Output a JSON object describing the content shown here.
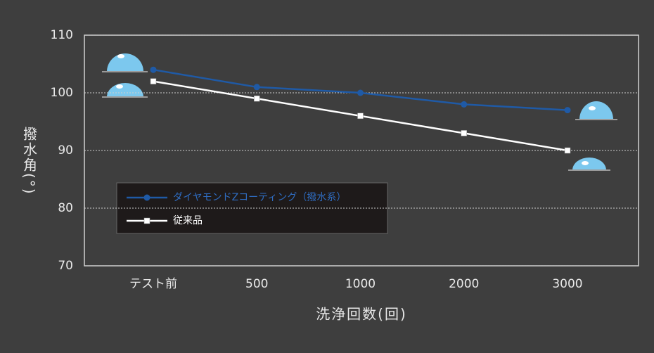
{
  "chart_data": {
    "type": "line",
    "x_label": "洗浄回数(回)",
    "y_label": "撥水角(°)",
    "categories": [
      "テスト前",
      "500",
      "1000",
      "2000",
      "3000"
    ],
    "series": [
      {
        "name": "ダイヤモンドZコーティング（撥水系）",
        "color": "#1f5aa6",
        "marker": "circle",
        "values": [
          104,
          101,
          100,
          98,
          97
        ]
      },
      {
        "name": "従来品",
        "color": "#ffffff",
        "marker": "square",
        "values": [
          102,
          99,
          96,
          93,
          90
        ]
      }
    ],
    "ylim": [
      70,
      110
    ],
    "yticks": [
      70,
      80,
      90,
      100,
      110
    ],
    "grid": true
  }
}
